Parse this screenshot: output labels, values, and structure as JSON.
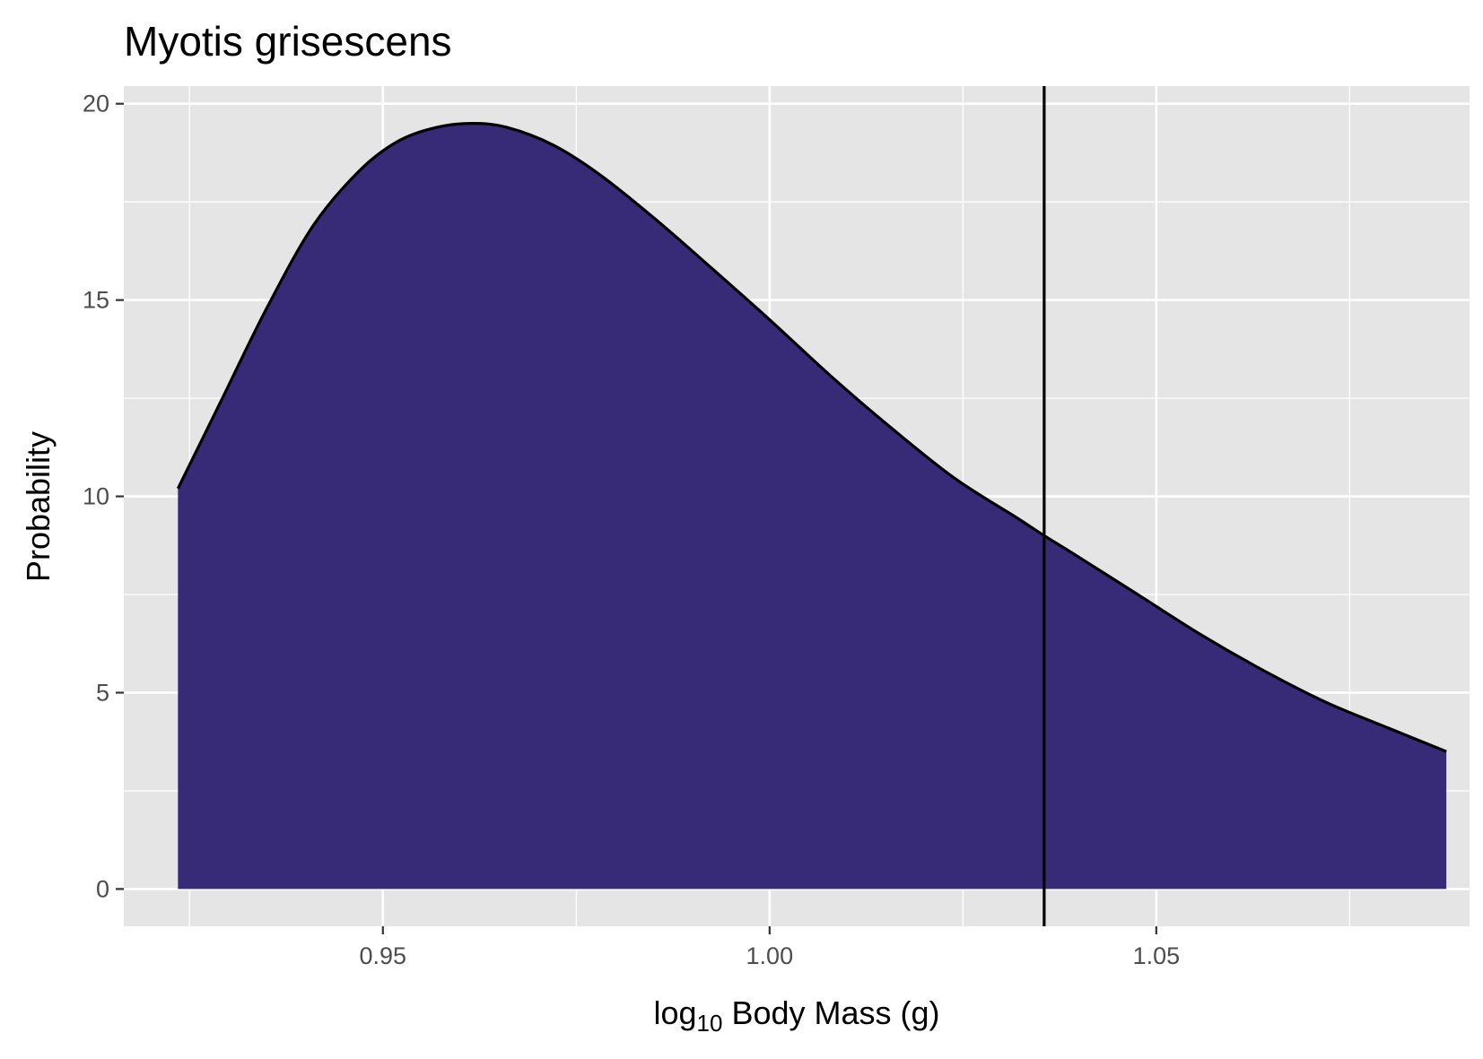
{
  "chart_data": {
    "type": "area",
    "title": "Myotis grisescens",
    "xlabel": {
      "prefix": "log",
      "subscript": "10",
      "suffix": " Body Mass (g)"
    },
    "ylabel": "Probability",
    "xlim": [
      0.9165,
      1.0905
    ],
    "ylim": [
      -0.95,
      20.45
    ],
    "x_ticks": [
      0.95,
      1.0,
      1.05
    ],
    "x_tick_labels": [
      "0.95",
      "1.00",
      "1.05"
    ],
    "y_ticks": [
      0,
      5,
      10,
      15,
      20
    ],
    "y_tick_labels": [
      "0",
      "5",
      "10",
      "15",
      "20"
    ],
    "grid": true,
    "legend": "none",
    "colors": {
      "fill": "#372a77",
      "line": "#000000",
      "panel": "#e5e5e5",
      "grid": "#ffffff"
    },
    "vline_x": 1.0355,
    "series": [
      {
        "x": [
          0.9235,
          0.929,
          0.935,
          0.941,
          0.947,
          0.952,
          0.957,
          0.9615,
          0.966,
          0.972,
          0.978,
          0.985,
          0.992,
          1.0,
          1.008,
          1.016,
          1.024,
          1.032,
          1.0355,
          1.04,
          1.048,
          1.056,
          1.064,
          1.072,
          1.08,
          1.0875
        ],
        "y": [
          10.2,
          12.4,
          14.8,
          16.9,
          18.3,
          19.05,
          19.4,
          19.5,
          19.4,
          18.95,
          18.2,
          17.1,
          15.9,
          14.5,
          13.05,
          11.7,
          10.45,
          9.45,
          9.0,
          8.45,
          7.45,
          6.45,
          5.55,
          4.75,
          4.1,
          3.5
        ]
      }
    ]
  }
}
